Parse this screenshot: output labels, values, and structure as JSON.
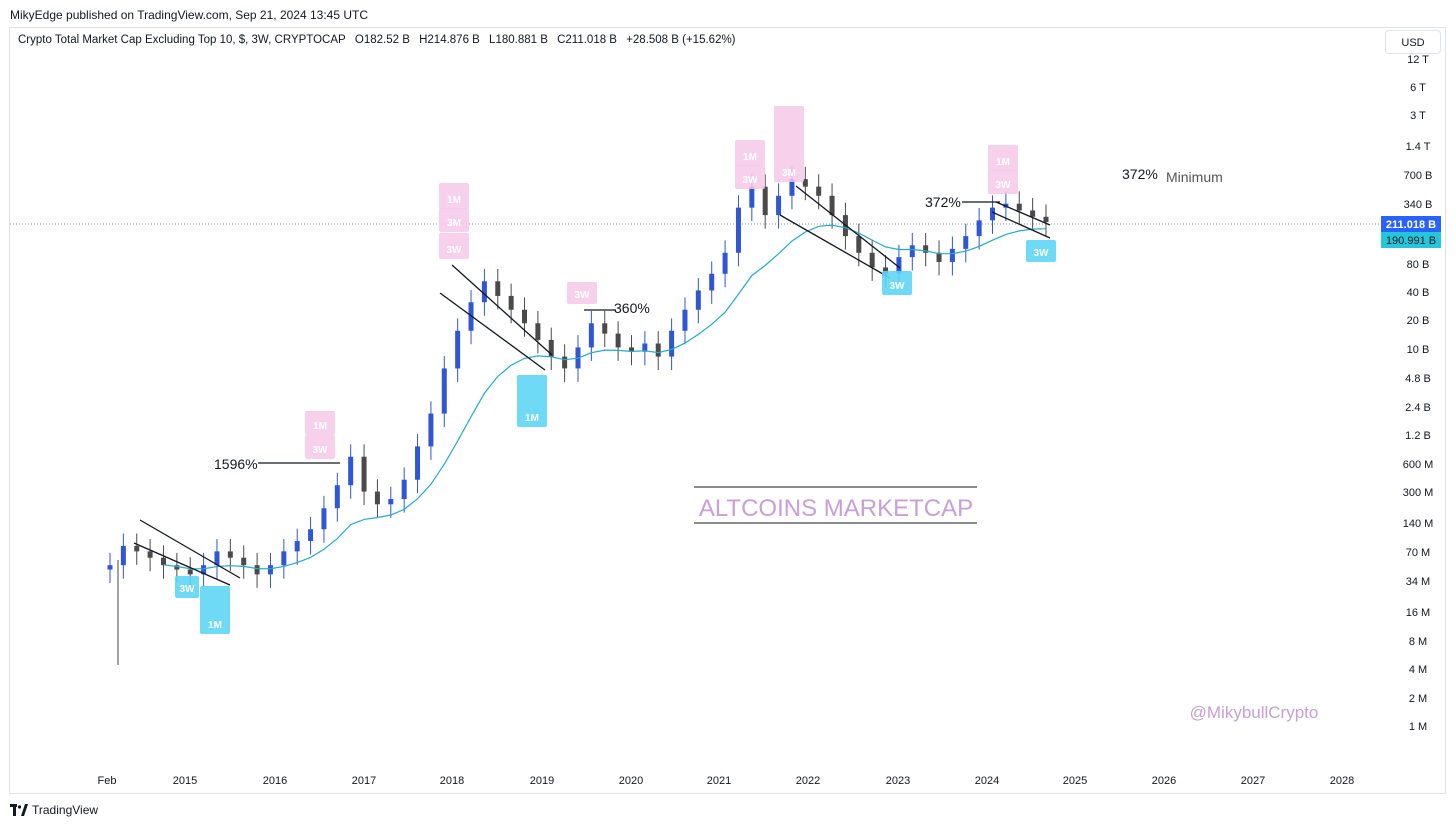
{
  "header": {
    "published": "MikyEdge published on TradingView.com, Sep 21, 2024 13:45 UTC"
  },
  "legend": {
    "symbol": "Crypto Total Market Cap Excluding Top 10, $, 3W, CRYPTOCAP",
    "open": "O182.52 B",
    "high": "H214.876 B",
    "low": "L180.881 B",
    "close": "C211.018 B",
    "change": "+28.508 B (+15.62%)"
  },
  "currency_button": "USD",
  "footer": {
    "brand": "TradingView"
  },
  "colors": {
    "bull": "#3056d3",
    "bear": "#4a4a4a",
    "ma": "#26a9c9",
    "pink": "#f6c8e8",
    "cyan": "#5fd6f5",
    "title": "#c7a0d6"
  },
  "chart_data": {
    "type": "candlestick",
    "scale": "log",
    "y_ticks": [
      "12 T",
      "6 T",
      "3 T",
      "1.4 T",
      "700 B",
      "340 B",
      "80 B",
      "40 B",
      "20 B",
      "10 B",
      "4.8 B",
      "2.4 B",
      "1.2 B",
      "600 M",
      "300 M",
      "140 M",
      "70 M",
      "34 M",
      "16 M",
      "8 M",
      "4 M",
      "2 M",
      "1 M"
    ],
    "x_ticks": [
      "Feb",
      "2015",
      "2016",
      "2017",
      "2018",
      "2019",
      "2020",
      "2021",
      "2022",
      "2023",
      "2024",
      "2025",
      "2026",
      "2027",
      "2028"
    ],
    "price_labels": {
      "last": "211.018 B",
      "ma": "190.991 B"
    },
    "series": [
      {
        "name": "",
        "approx_closes_B": [
          0.05,
          0.08,
          0.07,
          0.06,
          0.05,
          0.045,
          0.04,
          0.05,
          0.07,
          0.06,
          0.05,
          0.04,
          0.05,
          0.07,
          0.09,
          0.12,
          0.2,
          0.35,
          0.7,
          0.3,
          0.22,
          0.25,
          0.4,
          0.9,
          2,
          6,
          15,
          30,
          50,
          35,
          25,
          18,
          12,
          8,
          6,
          10,
          18,
          14,
          10,
          9,
          11,
          8,
          15,
          25,
          40,
          60,
          100,
          300,
          500,
          250,
          400,
          600,
          500,
          400,
          250,
          150,
          100,
          70,
          60,
          90,
          120,
          100,
          80,
          110,
          150,
          220,
          300,
          330,
          280,
          240,
          211
        ]
      },
      {
        "name": "",
        "kind": "moving-average"
      }
    ],
    "annotations": [
      {
        "text": "1596%"
      },
      {
        "text": "360%"
      },
      {
        "text": "372%"
      },
      {
        "text": "372%"
      },
      {
        "text": "Minimum"
      }
    ],
    "markers": [
      {
        "text": "3W",
        "color": "cyan"
      },
      {
        "text": "1M",
        "color": "cyan"
      },
      {
        "text": "1M",
        "color": "pink"
      },
      {
        "text": "3W",
        "color": "pink"
      },
      {
        "text": "1M",
        "color": "pink"
      },
      {
        "text": "3M",
        "color": "pink"
      },
      {
        "text": "3W",
        "color": "pink"
      },
      {
        "text": "1M",
        "color": "cyan"
      },
      {
        "text": "3W",
        "color": "pink"
      },
      {
        "text": "1M",
        "color": "pink"
      },
      {
        "text": "3W",
        "color": "pink"
      },
      {
        "text": "3M",
        "color": "pink"
      },
      {
        "text": "3W",
        "color": "cyan"
      },
      {
        "text": "1M",
        "color": "pink"
      },
      {
        "text": "3W",
        "color": "pink"
      },
      {
        "text": "3W",
        "color": "cyan"
      }
    ],
    "title_box": "ALTCOINS MARKETCAP",
    "watermark": "@MikybullCrypto"
  }
}
